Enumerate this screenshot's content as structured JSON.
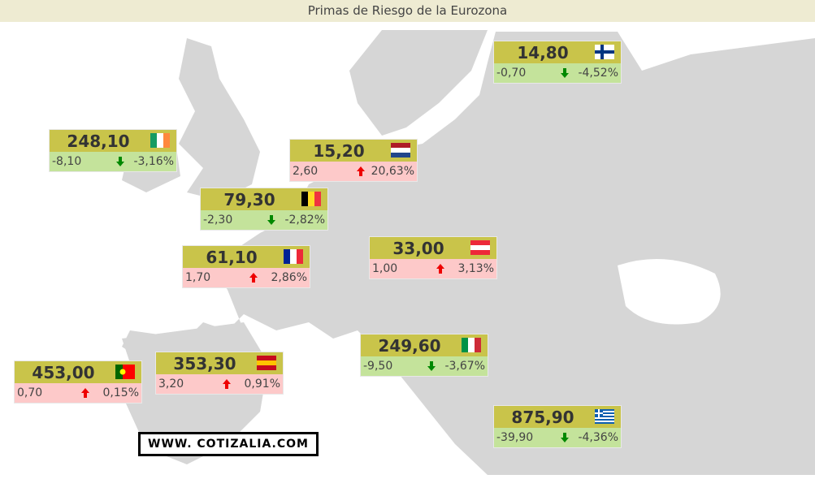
{
  "header": {
    "title": "Primas de Riesgo de la Eurozona"
  },
  "boxes": [
    {
      "value": "14,80",
      "change": "-0,70",
      "percent": "-4,52%"
    },
    {
      "value": "248,10",
      "change": "-8,10",
      "percent": "-3,16%"
    },
    {
      "value": "15,20",
      "change": "2,60",
      "percent": "20,63%"
    },
    {
      "value": "79,30",
      "change": "-2,30",
      "percent": "-2,82%"
    },
    {
      "value": "33,00",
      "change": "1,00",
      "percent": "3,13%"
    },
    {
      "value": "61,10",
      "change": "1,70",
      "percent": "2,86%"
    },
    {
      "value": "249,60",
      "change": "-9,50",
      "percent": "-3,67%"
    },
    {
      "value": "453,00",
      "change": "0,70",
      "percent": "0,15%"
    },
    {
      "value": "353,30",
      "change": "3,20",
      "percent": "0,91%"
    },
    {
      "value": "875,90",
      "change": "-39,90",
      "percent": "-4,36%"
    }
  ],
  "footer": {
    "website": "WWW. COTIZALIA.COM"
  }
}
